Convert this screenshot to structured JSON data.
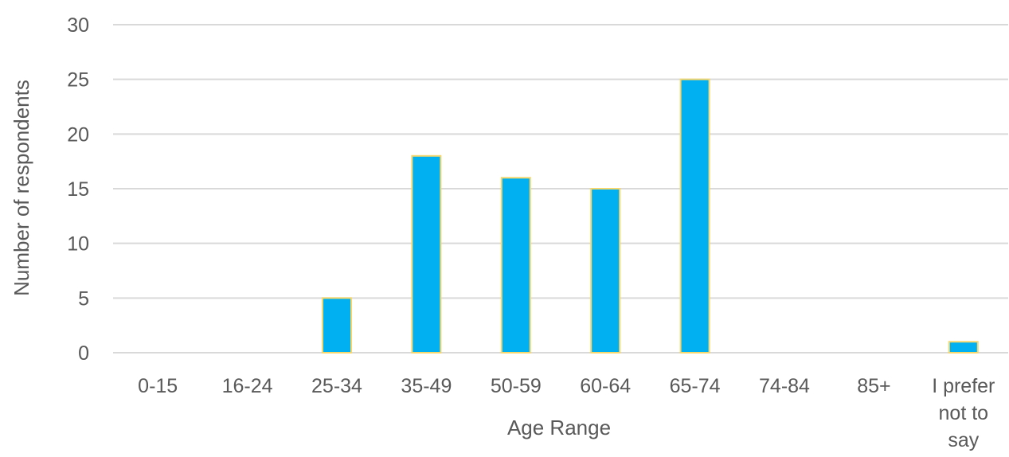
{
  "chart_data": {
    "type": "bar",
    "categories": [
      "0-15",
      "16-24",
      "25-34",
      "35-49",
      "50-59",
      "60-64",
      "65-74",
      "74-84",
      "85+",
      "I prefer not to say"
    ],
    "category_label_lines": [
      [
        "0-15"
      ],
      [
        "16-24"
      ],
      [
        "25-34"
      ],
      [
        "35-49"
      ],
      [
        "50-59"
      ],
      [
        "60-64"
      ],
      [
        "65-74"
      ],
      [
        "74-84"
      ],
      [
        "85+"
      ],
      [
        "I prefer",
        "not to",
        "say"
      ]
    ],
    "values": [
      0,
      0,
      5,
      18,
      16,
      15,
      25,
      0,
      0,
      1
    ],
    "xlabel": "Age Range",
    "ylabel": "Number of respondents",
    "ylim": [
      0,
      30
    ],
    "yticks": [
      0,
      5,
      10,
      15,
      20,
      25,
      30
    ],
    "grid": true,
    "legend": "none",
    "colors": {
      "bar_fill": "#00b0f0",
      "bar_stroke": "#f5d76e",
      "gridline": "#d9d9d9",
      "text": "#595959"
    }
  }
}
